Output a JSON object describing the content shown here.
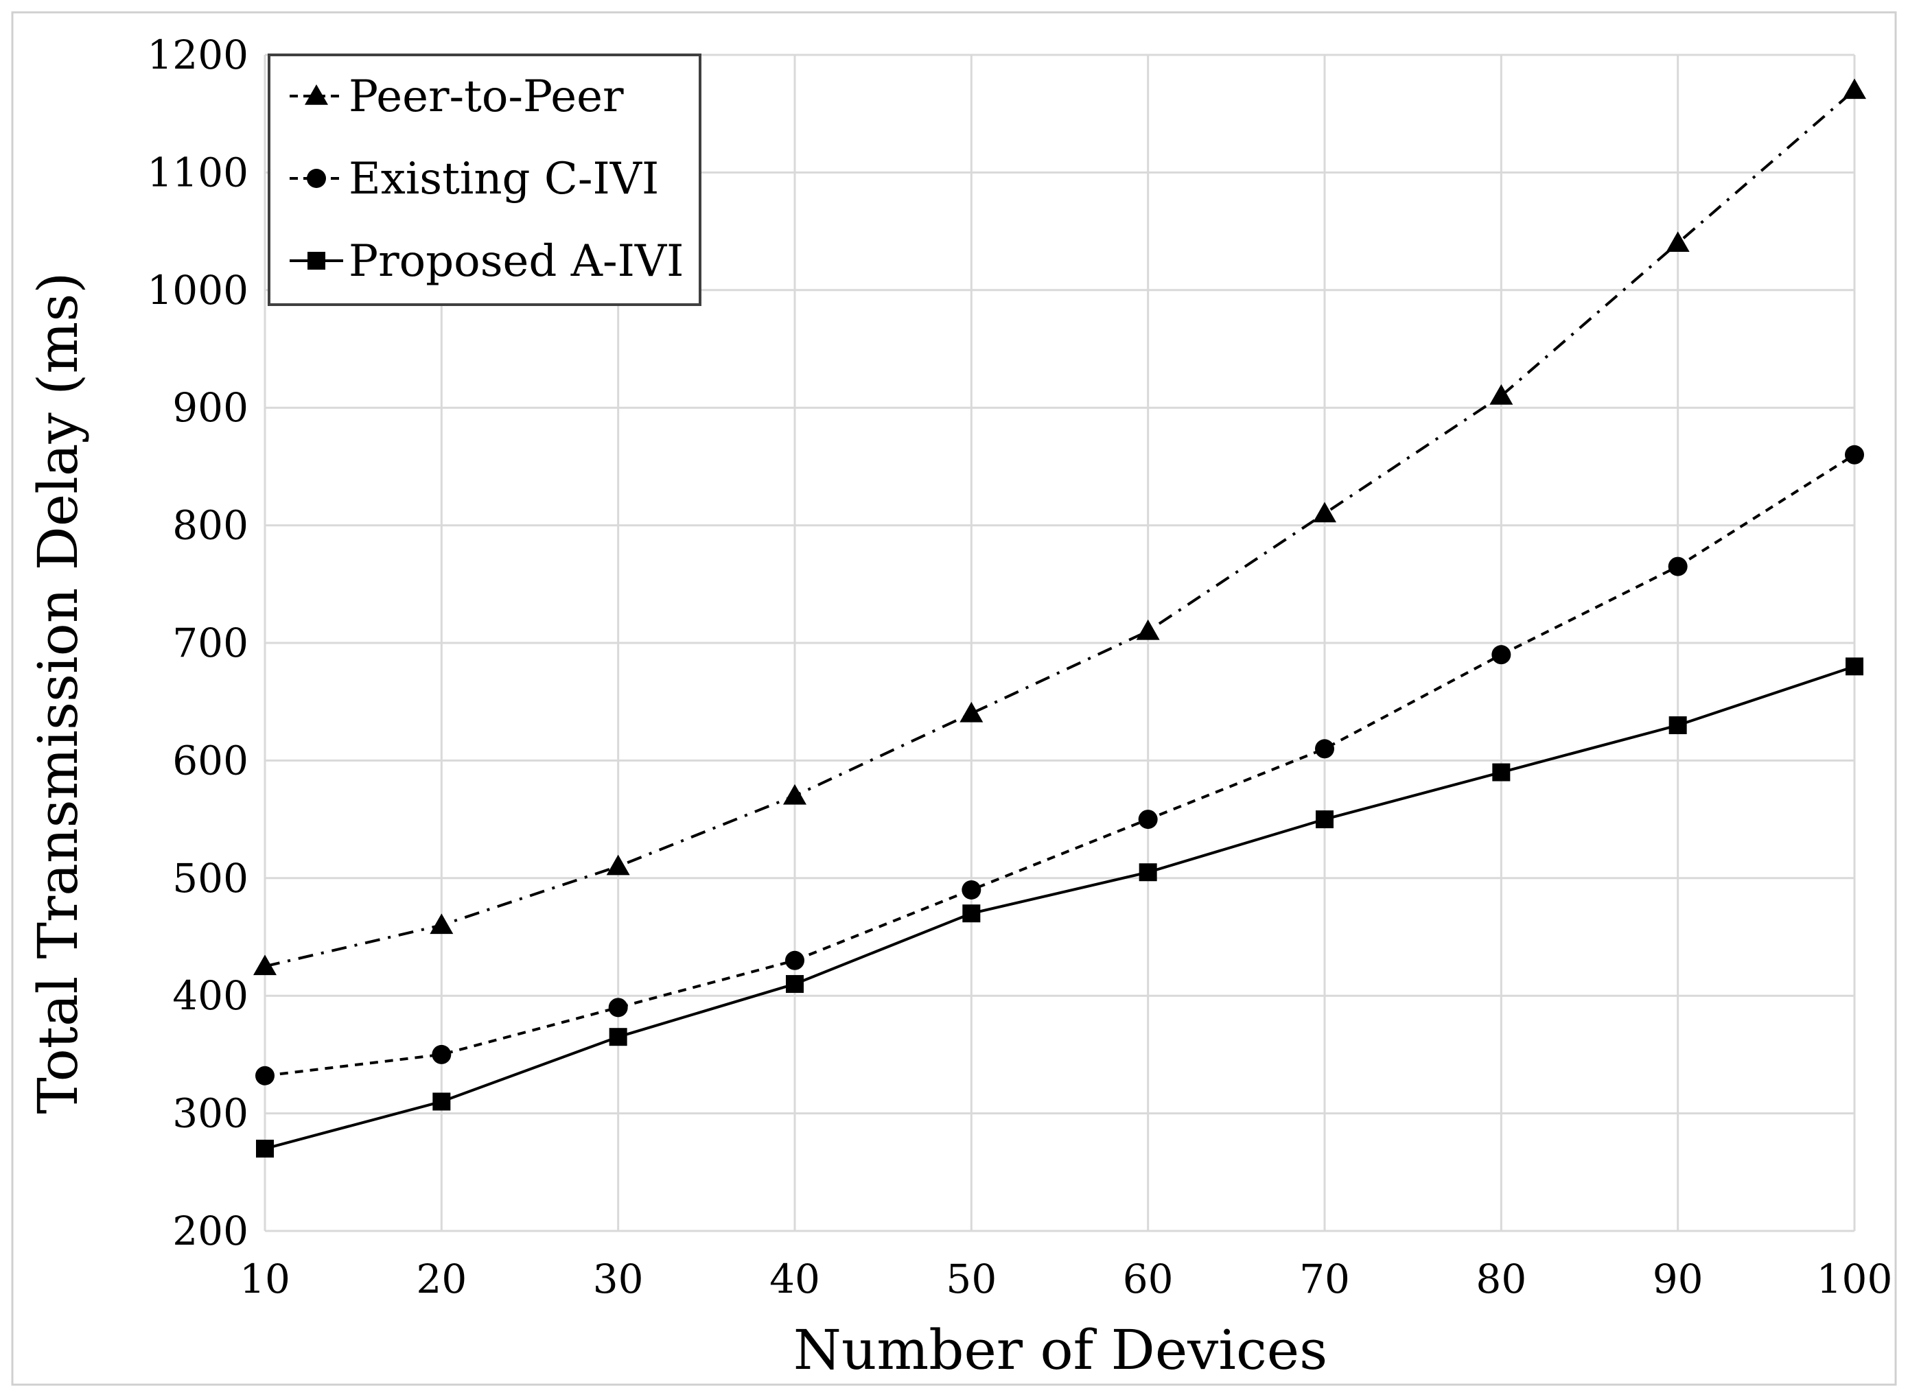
{
  "chart_data": {
    "type": "line",
    "title": "",
    "xlabel": "Number of Devices",
    "ylabel": "Total Transmission Delay (ms)",
    "x": [
      10,
      20,
      30,
      40,
      50,
      60,
      70,
      80,
      90,
      100
    ],
    "x_tick_labels": [
      "10",
      "20",
      "30",
      "40",
      "50",
      "60",
      "70",
      "80",
      "90",
      "100"
    ],
    "y_tick_labels": [
      "200",
      "300",
      "400",
      "500",
      "600",
      "700",
      "800",
      "900",
      "1000",
      "1100",
      "1200"
    ],
    "xlim": [
      10,
      100
    ],
    "ylim": [
      200,
      1200
    ],
    "grid": true,
    "legend_position": "top-left",
    "series": [
      {
        "name": "Peer-to-Peer",
        "marker": "triangle",
        "line_style": "dash-dot",
        "color": "#000000",
        "values": [
          425,
          460,
          510,
          570,
          640,
          710,
          810,
          910,
          1040,
          1170
        ]
      },
      {
        "name": "Existing C-IVI",
        "marker": "circle",
        "line_style": "dashed",
        "color": "#000000",
        "values": [
          332,
          350,
          390,
          430,
          490,
          550,
          610,
          690,
          765,
          860
        ]
      },
      {
        "name": "Proposed A-IVI",
        "marker": "square",
        "line_style": "solid",
        "color": "#000000",
        "values": [
          270,
          310,
          365,
          410,
          470,
          505,
          550,
          590,
          630,
          680
        ]
      }
    ]
  }
}
